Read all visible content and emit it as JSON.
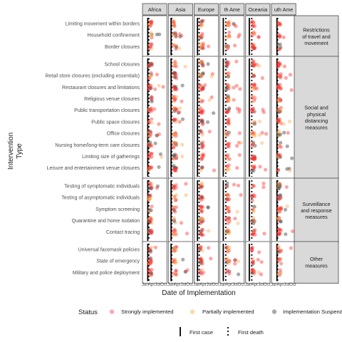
{
  "chart_data": {
    "type": "scatter",
    "subtype": "faceted-jitter-timeline",
    "xlabel": "Date of Implementation",
    "ylabel": "Intervention Type",
    "x_ticks": [
      "Jan",
      "Apr",
      "Jul",
      "Oct"
    ],
    "regions": [
      "Africa",
      "Asia",
      "Europe",
      "North America",
      "Oceania",
      "South America"
    ],
    "region_strip_labels": [
      "Africa",
      "Asia",
      "Europe",
      "th Ame",
      "Oceania",
      "uth Ame"
    ],
    "groups": [
      {
        "name": "Restrictions of travel and movement",
        "label_lines": [
          "Restrictions",
          "of travel and",
          "movement"
        ],
        "interventions": [
          "Limiting movement within borders",
          "Household confinement",
          "Border closures"
        ]
      },
      {
        "name": "Social and physical distancing measures",
        "label_lines": [
          "Social and",
          "physical",
          "distancing",
          "measures"
        ],
        "interventions": [
          "School closures",
          "Retail store closures (excluding essentials)",
          "Restaurant closures and limitations",
          "Religious venue closures",
          "Public transportation closures",
          "Public space closures",
          "Office closures",
          "Nursing home/long-term care closures",
          "Limiting size of gatherings",
          "Leisure and entertainment venue closures"
        ]
      },
      {
        "name": "Surveillance and response measures",
        "label_lines": [
          "Surveillance",
          "and response",
          "measures"
        ],
        "interventions": [
          "Testing of symptomatic individuals",
          "Testing of asymptomatic individuals",
          "Symptom screening",
          "Quarantine and home isolation",
          "Contact tracing"
        ]
      },
      {
        "name": "Other measures",
        "label_lines": [
          "Other",
          "measures"
        ],
        "interventions": [
          "Universal facemask policies",
          "State of emergency",
          "Military and police deployment"
        ]
      }
    ],
    "series": [
      {
        "name": "Strongly implemented",
        "color": "#ff2a2a"
      },
      {
        "name": "Partially implemented",
        "color": "#ffa64d"
      },
      {
        "name": "Implementation Suspended",
        "color": "#555555"
      }
    ],
    "reference_lines": [
      {
        "name": "First case",
        "style": "solid",
        "color": "#000000"
      },
      {
        "name": "First death",
        "style": "dotted",
        "color": "#000000"
      }
    ],
    "first_case_month_by_region": [
      2.2,
      1.0,
      1.3,
      1.3,
      1.4,
      2.3
    ],
    "first_death_month_by_region": [
      2.7,
      1.3,
      2.1,
      2.5,
      2.6,
      2.6
    ],
    "typical_implementation_month_by_region": [
      3.2,
      2.6,
      3.1,
      3.3,
      3.2,
      3.3
    ],
    "legend": {
      "title": "Status",
      "items": [
        "Strongly implemented",
        "Partially implemented",
        "Implementation Suspended"
      ],
      "line_items": [
        "First case",
        "First death"
      ],
      "position": "bottom"
    }
  },
  "colors": {
    "strong": "#ff2a2a",
    "partial": "#ffa64d",
    "suspended": "#555555",
    "strip_bg": "#d9d9d9"
  }
}
